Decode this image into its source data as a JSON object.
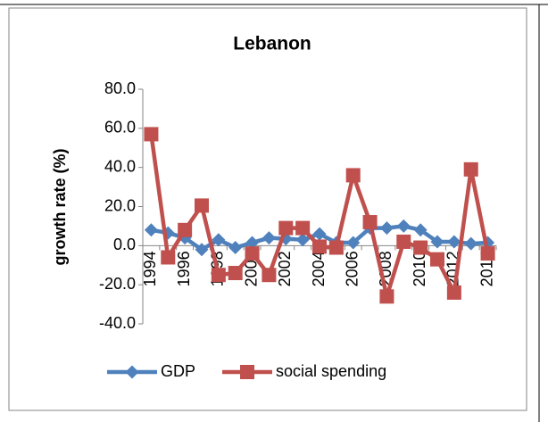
{
  "chart_data": {
    "type": "line",
    "title": "Lebanon",
    "y_label": "growth rate (%)",
    "categories": [
      "1994",
      null,
      "1996",
      null,
      "1998",
      null,
      "2000",
      null,
      "2002",
      null,
      "2004",
      null,
      "2006",
      null,
      "2008",
      null,
      "2010",
      null,
      "2012",
      null,
      "2014"
    ],
    "series": [
      {
        "name": "GDP",
        "color": "#4f81bd",
        "marker": "diamond",
        "values": [
          8,
          6.5,
          4,
          -2,
          3,
          -1,
          1.5,
          4,
          3.5,
          3,
          6,
          1.5,
          1.5,
          9,
          9,
          10,
          8,
          2,
          2,
          1,
          1.5
        ]
      },
      {
        "name": "social spending",
        "color": "#c0504d",
        "marker": "square",
        "values": [
          57,
          -6,
          8,
          20.5,
          -15,
          -14,
          -4,
          -15,
          9,
          9,
          -0.5,
          -1,
          36,
          12,
          -26,
          2,
          -1,
          -7,
          -24,
          39,
          -4
        ]
      }
    ],
    "ylim": [
      -40,
      80
    ],
    "yticks": [
      {
        "value": -40,
        "label": "-40.0"
      },
      {
        "value": -20,
        "label": "-20.0"
      },
      {
        "value": 0,
        "label": "0.0"
      },
      {
        "value": 20,
        "label": "20.0"
      },
      {
        "value": 40,
        "label": "40.0"
      },
      {
        "value": 60,
        "label": "60.0"
      },
      {
        "value": 80,
        "label": "80.0"
      }
    ],
    "grid": false,
    "legend": "bottom"
  }
}
